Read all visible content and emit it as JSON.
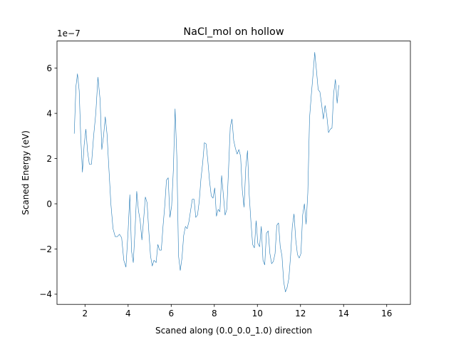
{
  "chart_data": {
    "type": "line",
    "title": "NaCl_mol on hollow",
    "xlabel": "Scaned along (0.0_0.0_1.0) direction",
    "ylabel": "Scaned Energy (eV)",
    "offset_text": "1e−7",
    "xlim": [
      0.7,
      17.1
    ],
    "ylim": [
      -4.45,
      7.2
    ],
    "xticks": [
      2,
      4,
      6,
      8,
      10,
      12,
      14,
      16
    ],
    "yticks": [
      -4,
      -2,
      0,
      2,
      4,
      6
    ],
    "grid": false,
    "line_color": "#1f77b4",
    "series": [
      {
        "values": [
          [
            1.5,
            3.1
          ],
          [
            1.58,
            5.2
          ],
          [
            1.65,
            5.75
          ],
          [
            1.73,
            5.0
          ],
          [
            1.8,
            3.0
          ],
          [
            1.88,
            1.4
          ],
          [
            1.96,
            2.6
          ],
          [
            2.04,
            3.3
          ],
          [
            2.12,
            2.3
          ],
          [
            2.2,
            1.75
          ],
          [
            2.3,
            1.75
          ],
          [
            2.4,
            3.0
          ],
          [
            2.5,
            4.0
          ],
          [
            2.6,
            5.6
          ],
          [
            2.7,
            4.6
          ],
          [
            2.78,
            2.4
          ],
          [
            2.86,
            3.0
          ],
          [
            2.94,
            3.85
          ],
          [
            3.02,
            3.1
          ],
          [
            3.1,
            1.7
          ],
          [
            3.2,
            0.0
          ],
          [
            3.3,
            -1.1
          ],
          [
            3.4,
            -1.45
          ],
          [
            3.5,
            -1.45
          ],
          [
            3.6,
            -1.35
          ],
          [
            3.7,
            -1.5
          ],
          [
            3.8,
            -2.5
          ],
          [
            3.9,
            -2.8
          ],
          [
            4.0,
            -1.2
          ],
          [
            4.08,
            0.4
          ],
          [
            4.16,
            -2.1
          ],
          [
            4.24,
            -2.6
          ],
          [
            4.32,
            -1.2
          ],
          [
            4.4,
            0.55
          ],
          [
            4.48,
            -0.3
          ],
          [
            4.56,
            -0.75
          ],
          [
            4.64,
            -1.6
          ],
          [
            4.72,
            -0.7
          ],
          [
            4.8,
            0.3
          ],
          [
            4.88,
            0.05
          ],
          [
            4.96,
            -1.2
          ],
          [
            5.04,
            -2.3
          ],
          [
            5.12,
            -2.75
          ],
          [
            5.2,
            -2.5
          ],
          [
            5.3,
            -2.6
          ],
          [
            5.38,
            -1.8
          ],
          [
            5.46,
            -2.05
          ],
          [
            5.54,
            -2.05
          ],
          [
            5.62,
            -1.0
          ],
          [
            5.7,
            -0.1
          ],
          [
            5.78,
            1.05
          ],
          [
            5.86,
            1.15
          ],
          [
            5.94,
            -0.6
          ],
          [
            6.02,
            -0.1
          ],
          [
            6.1,
            1.5
          ],
          [
            6.18,
            4.2
          ],
          [
            6.26,
            2.1
          ],
          [
            6.34,
            -2.3
          ],
          [
            6.42,
            -2.95
          ],
          [
            6.5,
            -2.4
          ],
          [
            6.58,
            -1.4
          ],
          [
            6.66,
            -1.0
          ],
          [
            6.74,
            -1.1
          ],
          [
            6.82,
            -0.8
          ],
          [
            6.9,
            -0.3
          ],
          [
            6.98,
            0.2
          ],
          [
            7.06,
            0.2
          ],
          [
            7.14,
            -0.6
          ],
          [
            7.22,
            -0.5
          ],
          [
            7.3,
            0.1
          ],
          [
            7.38,
            1.1
          ],
          [
            7.46,
            1.8
          ],
          [
            7.54,
            2.7
          ],
          [
            7.62,
            2.65
          ],
          [
            7.7,
            1.9
          ],
          [
            7.78,
            1.0
          ],
          [
            7.86,
            0.35
          ],
          [
            7.94,
            0.25
          ],
          [
            8.02,
            0.7
          ],
          [
            8.1,
            -0.55
          ],
          [
            8.18,
            -0.25
          ],
          [
            8.26,
            -0.35
          ],
          [
            8.34,
            1.25
          ],
          [
            8.42,
            0.4
          ],
          [
            8.5,
            -0.5
          ],
          [
            8.58,
            -0.25
          ],
          [
            8.66,
            1.5
          ],
          [
            8.74,
            3.4
          ],
          [
            8.82,
            3.75
          ],
          [
            8.9,
            2.8
          ],
          [
            8.98,
            2.45
          ],
          [
            9.06,
            2.2
          ],
          [
            9.14,
            2.4
          ],
          [
            9.22,
            2.1
          ],
          [
            9.3,
            0.6
          ],
          [
            9.38,
            -0.15
          ],
          [
            9.46,
            1.6
          ],
          [
            9.54,
            2.35
          ],
          [
            9.62,
            0.4
          ],
          [
            9.7,
            -0.8
          ],
          [
            9.78,
            -1.8
          ],
          [
            9.86,
            -1.95
          ],
          [
            9.94,
            -0.75
          ],
          [
            10.02,
            -1.75
          ],
          [
            10.1,
            -1.9
          ],
          [
            10.18,
            -1.0
          ],
          [
            10.26,
            -2.5
          ],
          [
            10.34,
            -2.7
          ],
          [
            10.42,
            -1.3
          ],
          [
            10.5,
            -1.2
          ],
          [
            10.58,
            -2.2
          ],
          [
            10.66,
            -2.65
          ],
          [
            10.74,
            -2.55
          ],
          [
            10.82,
            -2.2
          ],
          [
            10.9,
            -0.95
          ],
          [
            10.98,
            -0.85
          ],
          [
            11.06,
            -1.9
          ],
          [
            11.14,
            -2.3
          ],
          [
            11.22,
            -3.45
          ],
          [
            11.3,
            -3.9
          ],
          [
            11.38,
            -3.7
          ],
          [
            11.46,
            -3.3
          ],
          [
            11.54,
            -2.3
          ],
          [
            11.62,
            -1.0
          ],
          [
            11.7,
            -0.45
          ],
          [
            11.78,
            -1.6
          ],
          [
            11.86,
            -2.25
          ],
          [
            11.94,
            -2.4
          ],
          [
            12.02,
            -2.2
          ],
          [
            12.1,
            -0.5
          ],
          [
            12.18,
            0.0
          ],
          [
            12.26,
            -0.9
          ],
          [
            12.34,
            0.5
          ],
          [
            12.42,
            3.8
          ],
          [
            12.5,
            4.8
          ],
          [
            12.58,
            5.7
          ],
          [
            12.66,
            6.7
          ],
          [
            12.74,
            5.9
          ],
          [
            12.82,
            5.05
          ],
          [
            12.9,
            4.95
          ],
          [
            12.98,
            4.4
          ],
          [
            13.06,
            3.75
          ],
          [
            13.14,
            4.35
          ],
          [
            13.22,
            3.9
          ],
          [
            13.3,
            3.15
          ],
          [
            13.38,
            3.3
          ],
          [
            13.46,
            3.35
          ],
          [
            13.54,
            4.9
          ],
          [
            13.62,
            5.5
          ],
          [
            13.7,
            4.45
          ],
          [
            13.78,
            5.25
          ]
        ]
      }
    ]
  }
}
